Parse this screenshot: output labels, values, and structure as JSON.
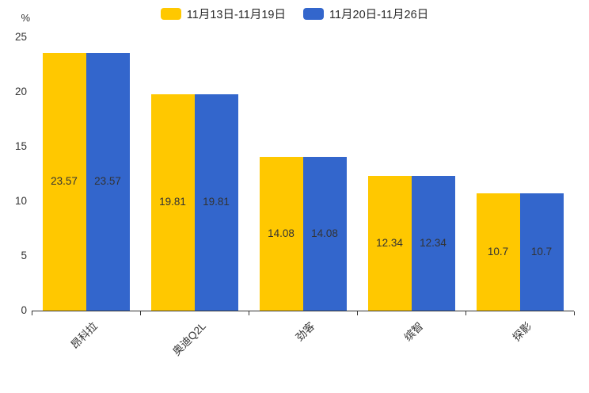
{
  "legend": {
    "items": [
      {
        "label": "11月13日-11月19日",
        "color": "#FFC800"
      },
      {
        "label": "11月20日-11月26日",
        "color": "#3366CC"
      }
    ]
  },
  "axes": {
    "y_unit_label": "%"
  },
  "chart_data": {
    "type": "bar",
    "title": "",
    "categories": [
      "昂科拉",
      "奥迪Q2L",
      "劲客",
      "缤智",
      "探影"
    ],
    "series": [
      {
        "name": "11月13日-11月19日",
        "color": "#FFC800",
        "values": [
          23.57,
          19.81,
          14.08,
          12.34,
          10.7
        ]
      },
      {
        "name": "11月20日-11月26日",
        "color": "#3366CC",
        "values": [
          23.57,
          19.81,
          14.08,
          12.34,
          10.7
        ]
      }
    ],
    "xlabel": "",
    "ylabel": "%",
    "ylim": [
      0,
      25
    ],
    "y_ticks": [
      0,
      5,
      10,
      15,
      20,
      25
    ],
    "grid": false,
    "legend_position": "top-center",
    "value_labels": "inside-center",
    "x_label_rotation_deg": 45
  }
}
